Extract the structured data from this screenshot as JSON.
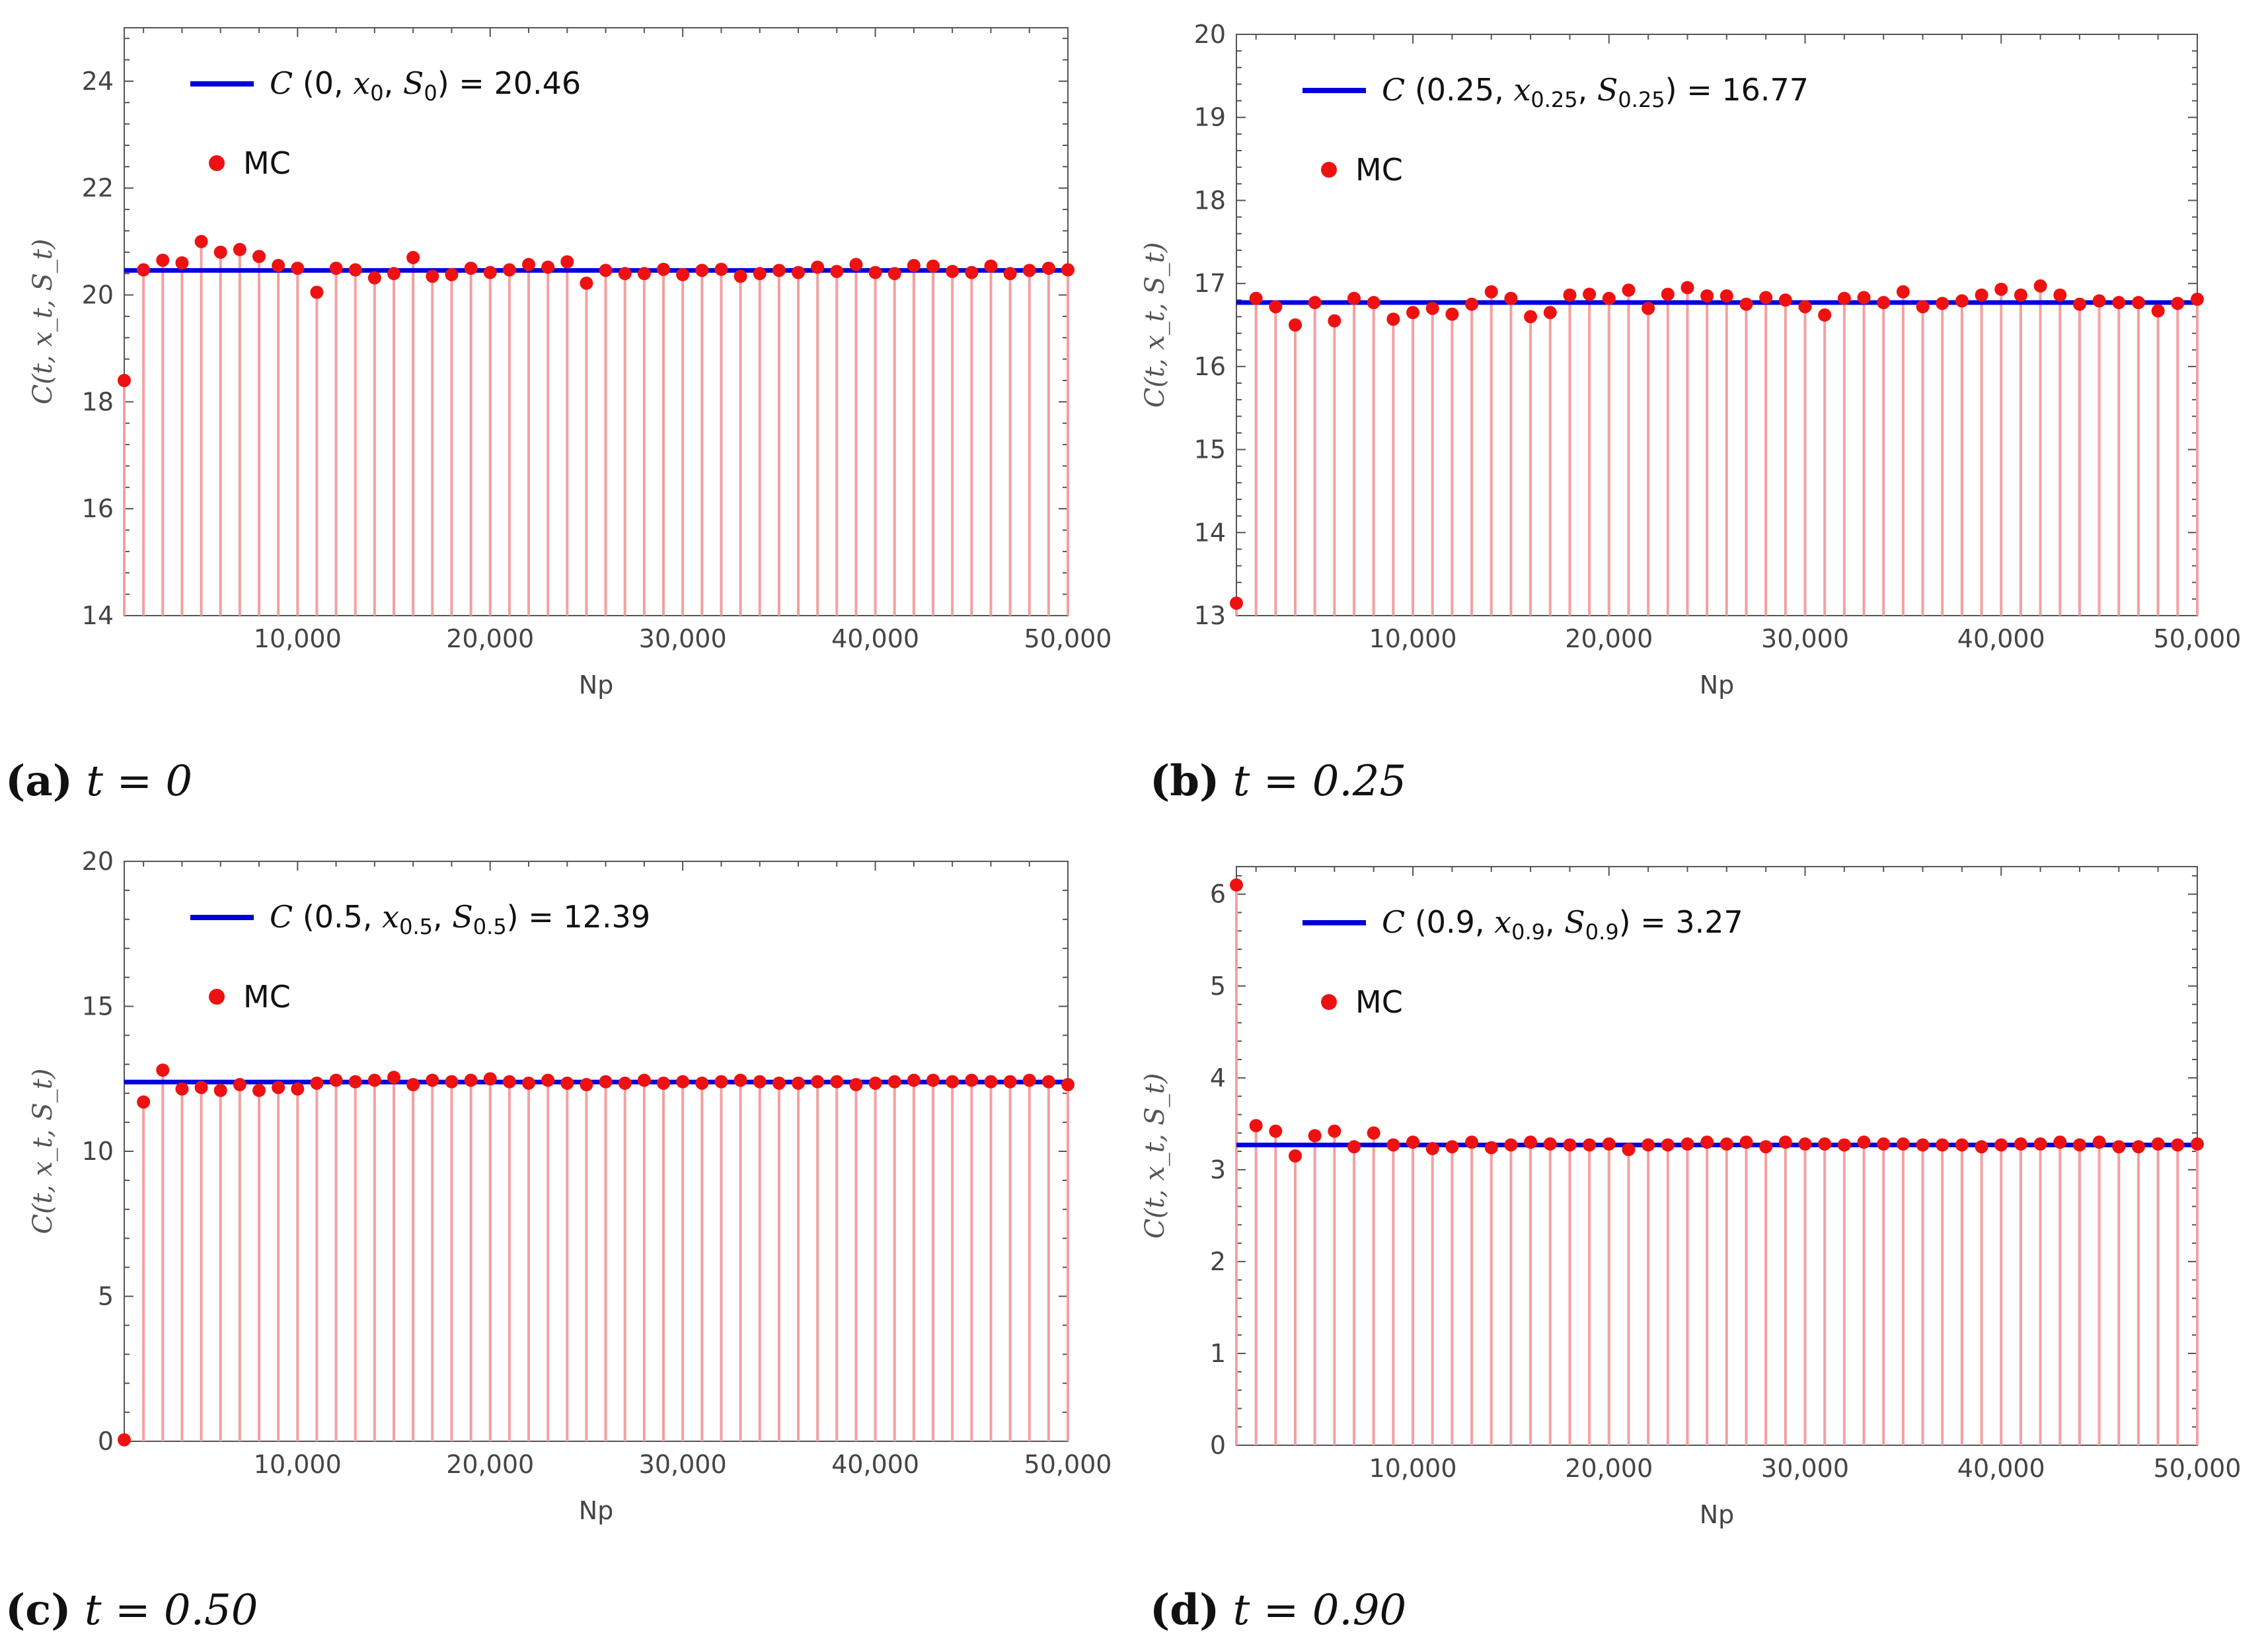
{
  "colors": {
    "reference_line": "#0000dd",
    "mc_points": "#ee1111",
    "stems": "#f4a0a0",
    "frame": "#555555"
  },
  "chart_data": [
    {
      "id": "a",
      "type": "scatter",
      "caption": {
        "letter": "(a)",
        "label": "t = 0"
      },
      "xlabel": "Np",
      "ylabel": "C(t, x_t, S_t)",
      "xlim": [
        1000,
        50000
      ],
      "ylim": [
        14,
        25
      ],
      "x_ticks": [
        10000,
        20000,
        30000,
        40000,
        50000
      ],
      "x_tick_labels": [
        "10,000",
        "20,000",
        "30,000",
        "40,000",
        "50,000"
      ],
      "y_ticks": [
        14,
        16,
        18,
        20,
        22,
        24
      ],
      "stem_base": 14,
      "reference": {
        "value": 20.46,
        "legend": "C (0, x0, S0) = 20.46"
      },
      "series": [
        {
          "name": "MC",
          "x": [
            1000,
            2000,
            3000,
            4000,
            5000,
            6000,
            7000,
            8000,
            9000,
            10000,
            11000,
            12000,
            13000,
            14000,
            15000,
            16000,
            17000,
            18000,
            19000,
            20000,
            21000,
            22000,
            23000,
            24000,
            25000,
            26000,
            27000,
            28000,
            29000,
            30000,
            31000,
            32000,
            33000,
            34000,
            35000,
            36000,
            37000,
            38000,
            39000,
            40000,
            41000,
            42000,
            43000,
            44000,
            45000,
            46000,
            47000,
            48000,
            49000,
            50000
          ],
          "y": [
            18.4,
            20.47,
            20.65,
            20.6,
            21.0,
            20.8,
            20.85,
            20.72,
            20.55,
            20.5,
            20.05,
            20.5,
            20.47,
            20.32,
            20.4,
            20.7,
            20.35,
            20.38,
            20.5,
            20.42,
            20.47,
            20.57,
            20.52,
            20.62,
            20.22,
            20.46,
            20.4,
            20.4,
            20.48,
            20.38,
            20.46,
            20.48,
            20.35,
            20.4,
            20.46,
            20.42,
            20.52,
            20.44,
            20.57,
            20.42,
            20.4,
            20.55,
            20.54,
            20.44,
            20.42,
            20.54,
            20.4,
            20.46,
            20.5,
            20.47
          ]
        }
      ]
    },
    {
      "id": "b",
      "type": "scatter",
      "caption": {
        "letter": "(b)",
        "label": "t = 0.25"
      },
      "xlabel": "Np",
      "ylabel": "C(t, x_t, S_t)",
      "xlim": [
        1000,
        50000
      ],
      "ylim": [
        13,
        20
      ],
      "x_ticks": [
        10000,
        20000,
        30000,
        40000,
        50000
      ],
      "x_tick_labels": [
        "10,000",
        "20,000",
        "30,000",
        "40,000",
        "50,000"
      ],
      "y_ticks": [
        13,
        14,
        15,
        16,
        17,
        18,
        19,
        20
      ],
      "stem_base": 13,
      "reference": {
        "value": 16.77,
        "legend": "C (0.25, x0.25, S0.25) = 16.77"
      },
      "series": [
        {
          "name": "MC",
          "x": [
            1000,
            2000,
            3000,
            4000,
            5000,
            6000,
            7000,
            8000,
            9000,
            10000,
            11000,
            12000,
            13000,
            14000,
            15000,
            16000,
            17000,
            18000,
            19000,
            20000,
            21000,
            22000,
            23000,
            24000,
            25000,
            26000,
            27000,
            28000,
            29000,
            30000,
            31000,
            32000,
            33000,
            34000,
            35000,
            36000,
            37000,
            38000,
            39000,
            40000,
            41000,
            42000,
            43000,
            44000,
            45000,
            46000,
            47000,
            48000,
            49000,
            50000
          ],
          "y": [
            13.15,
            16.82,
            16.72,
            16.5,
            16.77,
            16.55,
            16.82,
            16.77,
            16.57,
            16.65,
            16.7,
            16.63,
            16.75,
            16.9,
            16.82,
            16.6,
            16.65,
            16.86,
            16.87,
            16.82,
            16.92,
            16.7,
            16.87,
            16.95,
            16.85,
            16.85,
            16.75,
            16.83,
            16.8,
            16.72,
            16.62,
            16.82,
            16.83,
            16.77,
            16.9,
            16.72,
            16.76,
            16.79,
            16.86,
            16.93,
            16.86,
            16.97,
            16.86,
            16.75,
            16.79,
            16.77,
            16.77,
            16.67,
            16.76,
            16.81
          ]
        }
      ]
    },
    {
      "id": "c",
      "type": "scatter",
      "caption": {
        "letter": "(c)",
        "label": "t = 0.50"
      },
      "xlabel": "Np",
      "ylabel": "C(t, x_t, S_t)",
      "xlim": [
        1000,
        50000
      ],
      "ylim": [
        0,
        20
      ],
      "x_ticks": [
        10000,
        20000,
        30000,
        40000,
        50000
      ],
      "x_tick_labels": [
        "10,000",
        "20,000",
        "30,000",
        "40,000",
        "50,000"
      ],
      "y_ticks": [
        0,
        5,
        10,
        15,
        20
      ],
      "stem_base": 0,
      "reference": {
        "value": 12.39,
        "legend": "C (0.5, x0.5, S0.5) = 12.39"
      },
      "series": [
        {
          "name": "MC",
          "x": [
            1000,
            2000,
            3000,
            4000,
            5000,
            6000,
            7000,
            8000,
            9000,
            10000,
            11000,
            12000,
            13000,
            14000,
            15000,
            16000,
            17000,
            18000,
            19000,
            20000,
            21000,
            22000,
            23000,
            24000,
            25000,
            26000,
            27000,
            28000,
            29000,
            30000,
            31000,
            32000,
            33000,
            34000,
            35000,
            36000,
            37000,
            38000,
            39000,
            40000,
            41000,
            42000,
            43000,
            44000,
            45000,
            46000,
            47000,
            48000,
            49000,
            50000
          ],
          "y": [
            0.05,
            11.7,
            12.8,
            12.15,
            12.2,
            12.1,
            12.3,
            12.1,
            12.2,
            12.15,
            12.35,
            12.45,
            12.4,
            12.45,
            12.55,
            12.3,
            12.45,
            12.4,
            12.45,
            12.5,
            12.4,
            12.35,
            12.45,
            12.35,
            12.3,
            12.4,
            12.35,
            12.45,
            12.35,
            12.4,
            12.35,
            12.4,
            12.45,
            12.4,
            12.35,
            12.35,
            12.4,
            12.4,
            12.3,
            12.35,
            12.4,
            12.45,
            12.45,
            12.4,
            12.45,
            12.4,
            12.4,
            12.45,
            12.4,
            12.3
          ]
        }
      ]
    },
    {
      "id": "d",
      "type": "scatter",
      "caption": {
        "letter": "(d)",
        "label": "t = 0.90"
      },
      "xlabel": "Np",
      "ylabel": "C(t, x_t, S_t)",
      "xlim": [
        1000,
        50000
      ],
      "ylim": [
        0,
        6.3
      ],
      "x_ticks": [
        10000,
        20000,
        30000,
        40000,
        50000
      ],
      "x_tick_labels": [
        "10,000",
        "20,000",
        "30,000",
        "40,000",
        "50,000"
      ],
      "y_ticks": [
        0,
        1,
        2,
        3,
        4,
        5,
        6
      ],
      "stem_base": 0,
      "reference": {
        "value": 3.27,
        "legend": "C (0.9, x0.9, S0.9) = 3.27"
      },
      "series": [
        {
          "name": "MC",
          "x": [
            1000,
            2000,
            3000,
            4000,
            5000,
            6000,
            7000,
            8000,
            9000,
            10000,
            11000,
            12000,
            13000,
            14000,
            15000,
            16000,
            17000,
            18000,
            19000,
            20000,
            21000,
            22000,
            23000,
            24000,
            25000,
            26000,
            27000,
            28000,
            29000,
            30000,
            31000,
            32000,
            33000,
            34000,
            35000,
            36000,
            37000,
            38000,
            39000,
            40000,
            41000,
            42000,
            43000,
            44000,
            45000,
            46000,
            47000,
            48000,
            49000,
            50000
          ],
          "y": [
            6.1,
            3.48,
            3.42,
            3.15,
            3.37,
            3.42,
            3.25,
            3.4,
            3.27,
            3.3,
            3.23,
            3.25,
            3.3,
            3.24,
            3.27,
            3.3,
            3.28,
            3.27,
            3.27,
            3.28,
            3.22,
            3.27,
            3.27,
            3.28,
            3.3,
            3.28,
            3.3,
            3.25,
            3.3,
            3.28,
            3.28,
            3.27,
            3.3,
            3.28,
            3.28,
            3.27,
            3.27,
            3.27,
            3.25,
            3.27,
            3.28,
            3.28,
            3.3,
            3.27,
            3.3,
            3.25,
            3.25,
            3.28,
            3.27,
            3.28
          ]
        }
      ]
    }
  ]
}
